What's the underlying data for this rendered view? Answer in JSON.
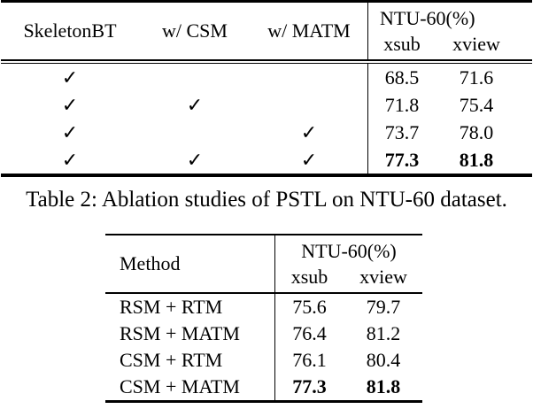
{
  "table1": {
    "headers": {
      "col1": "SkeletonBT",
      "col2": "w/ CSM",
      "col3": "w/ MATM",
      "group": "NTU-60(%)",
      "sub1": "xsub",
      "sub2": "xview"
    },
    "check_glyph": "✓",
    "rows": [
      {
        "skeletonbt": "✓",
        "csm": "",
        "matm": "",
        "xsub": "68.5",
        "xview": "71.6"
      },
      {
        "skeletonbt": "✓",
        "csm": "✓",
        "matm": "",
        "xsub": "71.8",
        "xview": "75.4"
      },
      {
        "skeletonbt": "✓",
        "csm": "",
        "matm": "✓",
        "xsub": "73.7",
        "xview": "78.0"
      },
      {
        "skeletonbt": "✓",
        "csm": "✓",
        "matm": "✓",
        "xsub": "77.3",
        "xview": "81.8"
      }
    ]
  },
  "caption": "Table 2: Ablation studies of PSTL on NTU-60 dataset.",
  "table2": {
    "headers": {
      "method": "Method",
      "group": "NTU-60(%)",
      "sub1": "xsub",
      "sub2": "xview"
    },
    "rows": [
      {
        "method": "RSM + RTM",
        "xsub": "75.6",
        "xview": "79.7"
      },
      {
        "method": "RSM + MATM",
        "xsub": "76.4",
        "xview": "81.2"
      },
      {
        "method": "CSM + RTM",
        "xsub": "76.1",
        "xview": "80.4"
      },
      {
        "method": "CSM + MATM",
        "xsub": "77.3",
        "xview": "81.8"
      }
    ]
  }
}
